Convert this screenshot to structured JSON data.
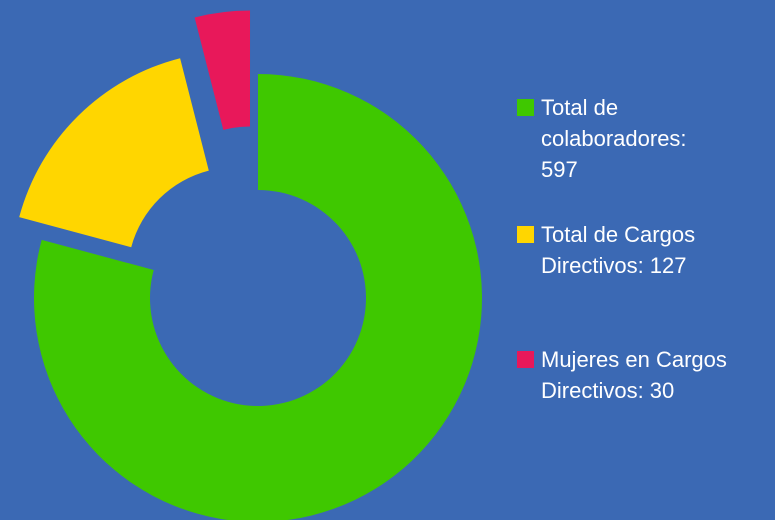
{
  "chart_data": {
    "type": "donut",
    "categories": [
      "Total de colaboradores: 597",
      "Total de Cargos Directivos: 127",
      "Mujeres en Cargos Directivos: 30"
    ],
    "values": [
      597,
      127,
      30
    ],
    "colors": [
      "#3fc800",
      "#ffd600",
      "#e8185a"
    ],
    "legend": "right"
  }
}
